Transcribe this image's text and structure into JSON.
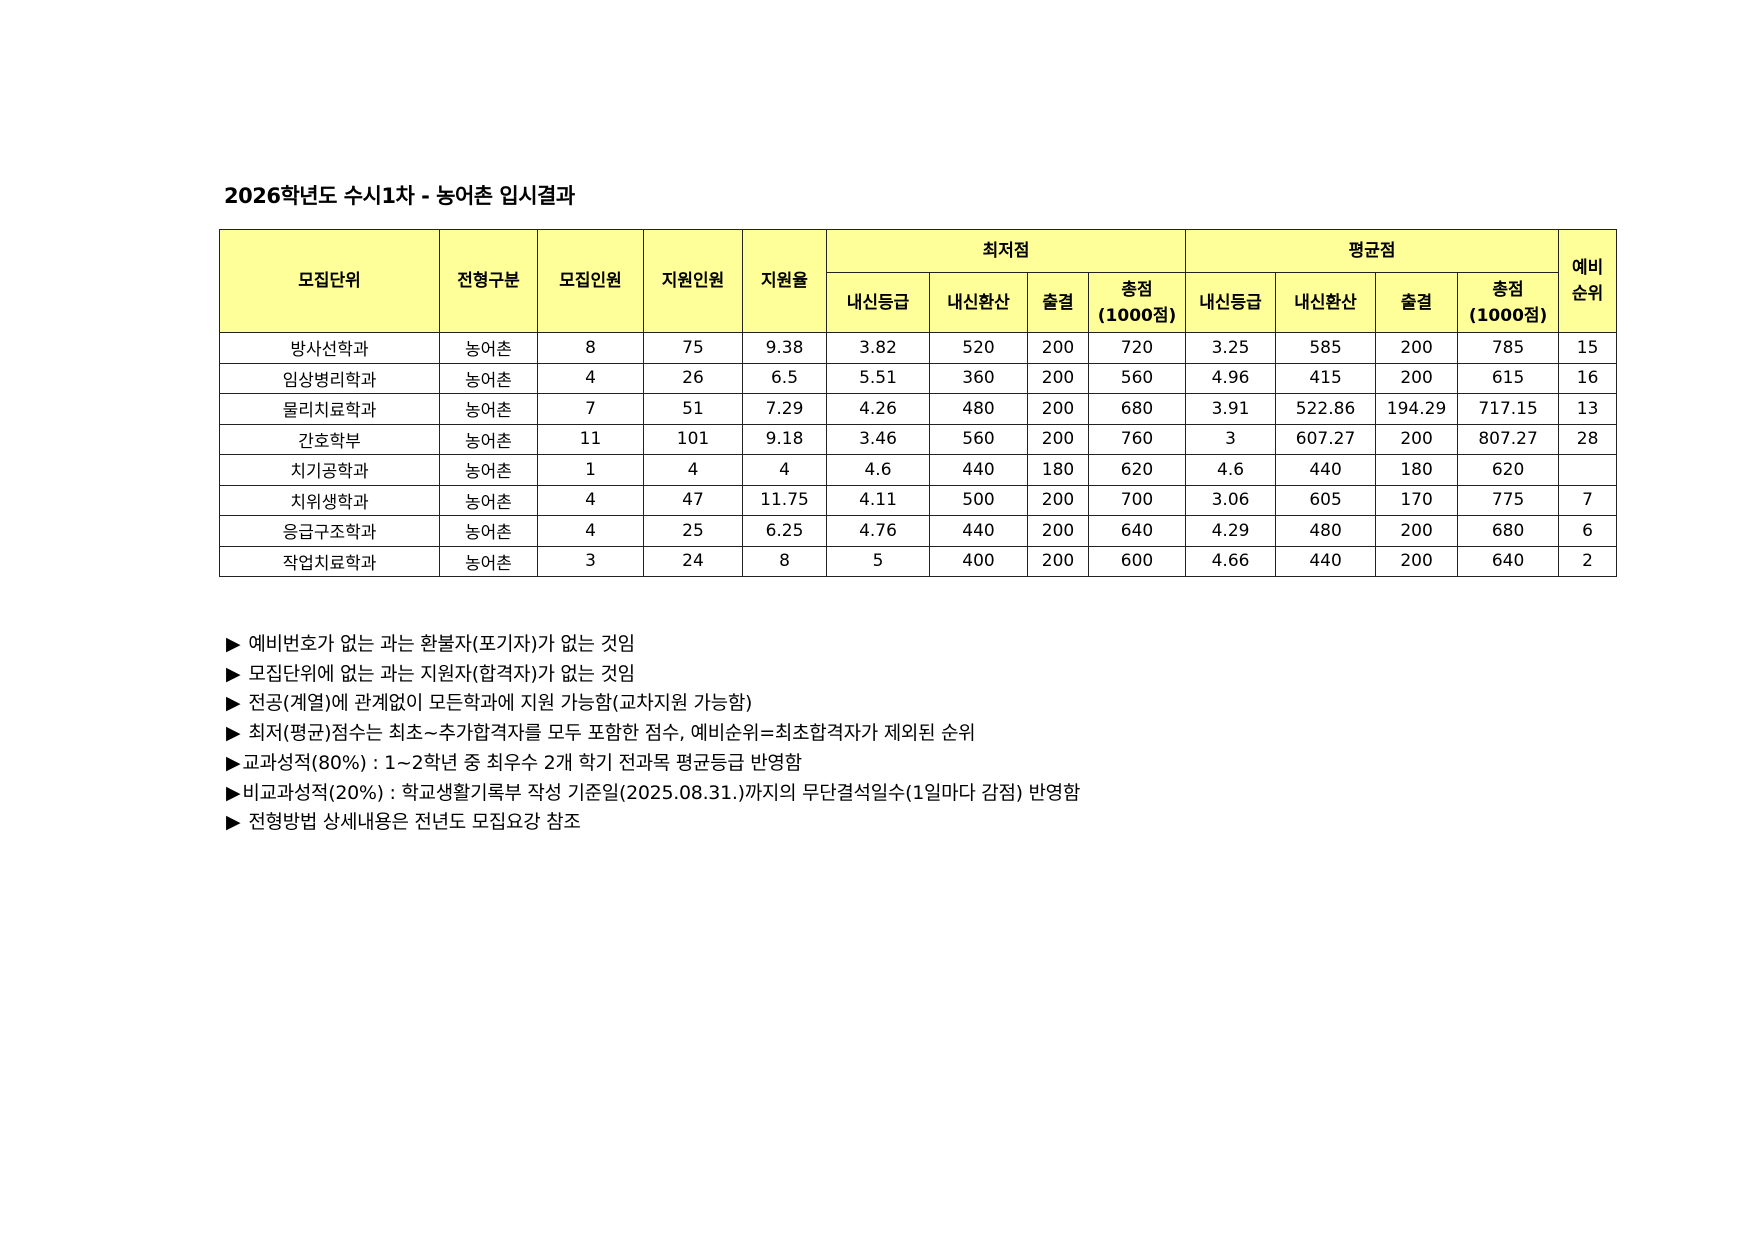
{
  "title": "2026학년도 수시1차 - 농어촌 입시결과",
  "header": {
    "col_unit": "모집단위",
    "col_type": "전형구분",
    "col_quota": "모집인원",
    "col_applicants": "지원인원",
    "col_ratio": "지원율",
    "group_min": "최저점",
    "group_avg": "평균점",
    "col_rank_line1": "예비",
    "col_rank_line2": "순위",
    "sub": {
      "grade": "내신등급",
      "converted": "내신환산",
      "attendance": "출결",
      "total_line1": "총점",
      "total_line2": "(1000점)"
    }
  },
  "rows": [
    {
      "unit": "방사선학과",
      "type": "농어촌",
      "quota": "8",
      "applicants": "75",
      "ratio": "9.38",
      "min_grade": "3.82",
      "min_conv": "520",
      "min_att": "200",
      "min_total": "720",
      "avg_grade": "3.25",
      "avg_conv": "585",
      "avg_att": "200",
      "avg_total": "785",
      "rank": "15"
    },
    {
      "unit": "임상병리학과",
      "type": "농어촌",
      "quota": "4",
      "applicants": "26",
      "ratio": "6.5",
      "min_grade": "5.51",
      "min_conv": "360",
      "min_att": "200",
      "min_total": "560",
      "avg_grade": "4.96",
      "avg_conv": "415",
      "avg_att": "200",
      "avg_total": "615",
      "rank": "16"
    },
    {
      "unit": "물리치료학과",
      "type": "농어촌",
      "quota": "7",
      "applicants": "51",
      "ratio": "7.29",
      "min_grade": "4.26",
      "min_conv": "480",
      "min_att": "200",
      "min_total": "680",
      "avg_grade": "3.91",
      "avg_conv": "522.86",
      "avg_att": "194.29",
      "avg_total": "717.15",
      "rank": "13"
    },
    {
      "unit": "간호학부",
      "type": "농어촌",
      "quota": "11",
      "applicants": "101",
      "ratio": "9.18",
      "min_grade": "3.46",
      "min_conv": "560",
      "min_att": "200",
      "min_total": "760",
      "avg_grade": "3",
      "avg_conv": "607.27",
      "avg_att": "200",
      "avg_total": "807.27",
      "rank": "28"
    },
    {
      "unit": "치기공학과",
      "type": "농어촌",
      "quota": "1",
      "applicants": "4",
      "ratio": "4",
      "min_grade": "4.6",
      "min_conv": "440",
      "min_att": "180",
      "min_total": "620",
      "avg_grade": "4.6",
      "avg_conv": "440",
      "avg_att": "180",
      "avg_total": "620",
      "rank": ""
    },
    {
      "unit": "치위생학과",
      "type": "농어촌",
      "quota": "4",
      "applicants": "47",
      "ratio": "11.75",
      "min_grade": "4.11",
      "min_conv": "500",
      "min_att": "200",
      "min_total": "700",
      "avg_grade": "3.06",
      "avg_conv": "605",
      "avg_att": "170",
      "avg_total": "775",
      "rank": "7"
    },
    {
      "unit": "응급구조학과",
      "type": "농어촌",
      "quota": "4",
      "applicants": "25",
      "ratio": "6.25",
      "min_grade": "4.76",
      "min_conv": "440",
      "min_att": "200",
      "min_total": "640",
      "avg_grade": "4.29",
      "avg_conv": "480",
      "avg_att": "200",
      "avg_total": "680",
      "rank": "6"
    },
    {
      "unit": "작업치료학과",
      "type": "농어촌",
      "quota": "3",
      "applicants": "24",
      "ratio": "8",
      "min_grade": "5",
      "min_conv": "400",
      "min_att": "200",
      "min_total": "600",
      "avg_grade": "4.66",
      "avg_conv": "440",
      "avg_att": "200",
      "avg_total": "640",
      "rank": "2"
    }
  ],
  "header_color": "#ffff99",
  "bullet_icon": "black-right-triangle",
  "notes": [
    "예비번호가 없는 과는 환불자(포기자)가 없는 것임",
    "모집단위에 없는 과는 지원자(합격자)가 없는 것임",
    "전공(계열)에 관계없이 모든학과에 지원 가능함(교차지원 가능함)",
    "최저(평균)점수는 최초~추가합격자를 모두 포함한 점수, 예비순위=최초합격자가 제외된 순위",
    "교과성적(80%) : 1~2학년 중 최우수 2개 학기 전과목 평균등급 반영함",
    "비교과성적(20%) : 학교생활기록부 작성 기준일(2025.08.31.)까지의 무단결석일수(1일마다 감점) 반영함",
    "전형방법 상세내용은 전년도 모집요강 참조"
  ]
}
